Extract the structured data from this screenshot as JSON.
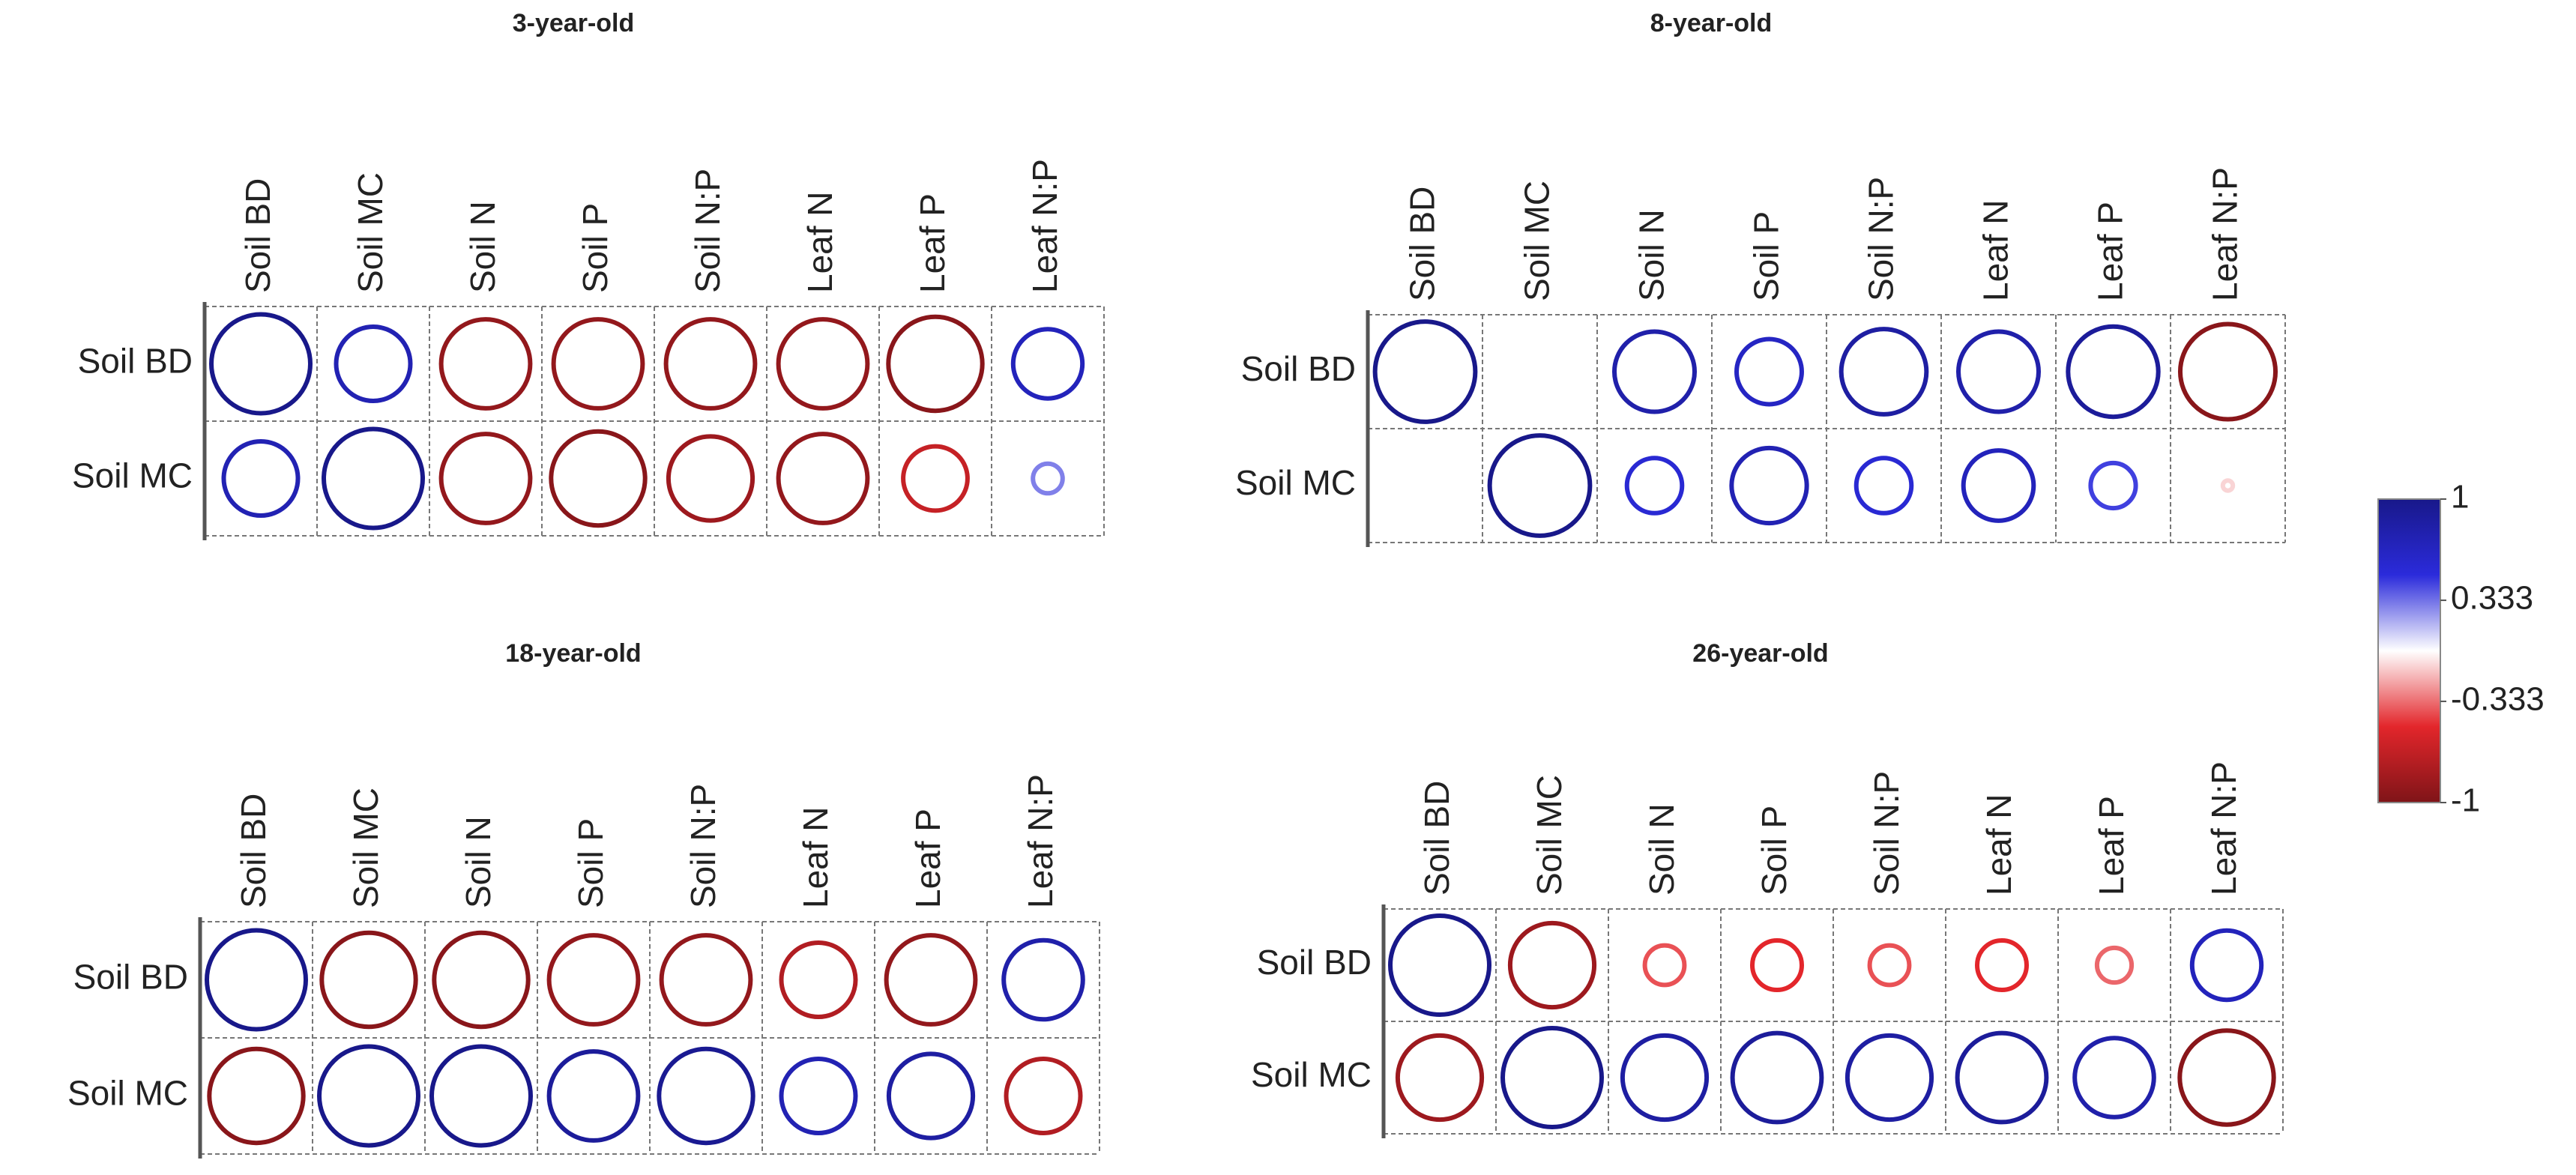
{
  "chart_data": [
    {
      "type": "correlation",
      "title": "3-year-old",
      "columns": [
        "Soil BD",
        "Soil MC",
        "Soil N",
        "Soil P",
        "Soil N:P",
        "Leaf N",
        "Leaf P",
        "Leaf N:P"
      ],
      "rows": [
        "Soil BD",
        "Soil MC"
      ],
      "values": [
        [
          1,
          0.75,
          -0.9,
          -0.9,
          -0.9,
          -0.9,
          -0.95,
          0.7
        ],
        [
          0.75,
          1,
          -0.9,
          -0.95,
          -0.85,
          -0.9,
          -0.65,
          0.3
        ]
      ]
    },
    {
      "type": "correlation",
      "title": "8-year-old",
      "columns": [
        "Soil BD",
        "Soil MC",
        "Soil N",
        "Soil P",
        "Soil N:P",
        "Leaf N",
        "Leaf P",
        "Leaf N:P"
      ],
      "rows": [
        "Soil BD",
        "Soil MC"
      ],
      "values": [
        [
          1,
          0,
          0.8,
          0.65,
          0.85,
          0.8,
          0.9,
          -0.95
        ],
        [
          0,
          1,
          0.55,
          0.75,
          0.55,
          0.7,
          0.45,
          -0.1
        ]
      ]
    },
    {
      "type": "correlation",
      "title": "18-year-old",
      "columns": [
        "Soil BD",
        "Soil MC",
        "Soil N",
        "Soil P",
        "Soil N:P",
        "Leaf N",
        "Leaf P",
        "Leaf N:P"
      ],
      "rows": [
        "Soil BD",
        "Soil MC"
      ],
      "values": [
        [
          1,
          -0.95,
          -0.95,
          -0.9,
          -0.9,
          -0.75,
          -0.9,
          0.8
        ],
        [
          -0.95,
          1,
          1,
          0.9,
          0.95,
          0.75,
          0.85,
          -0.75
        ]
      ]
    },
    {
      "type": "correlation",
      "title": "26-year-old",
      "columns": [
        "Soil BD",
        "Soil MC",
        "Soil N",
        "Soil P",
        "Soil N:P",
        "Leaf N",
        "Leaf P",
        "Leaf N:P"
      ],
      "rows": [
        "Soil BD",
        "Soil MC"
      ],
      "values": [
        [
          1,
          -0.85,
          -0.4,
          -0.5,
          -0.4,
          -0.5,
          -0.35,
          0.7
        ],
        [
          -0.85,
          1,
          0.85,
          0.9,
          0.85,
          0.9,
          0.8,
          -0.95
        ]
      ]
    },
    {
      "type": "colorbar",
      "clim": [
        -1,
        1
      ],
      "ticks": [
        1,
        0.333,
        -0.333,
        -1
      ],
      "colors": [
        "#7f1418",
        "#e3262b",
        "#ffffff",
        "#2b2bdb",
        "#18188a"
      ]
    }
  ]
}
